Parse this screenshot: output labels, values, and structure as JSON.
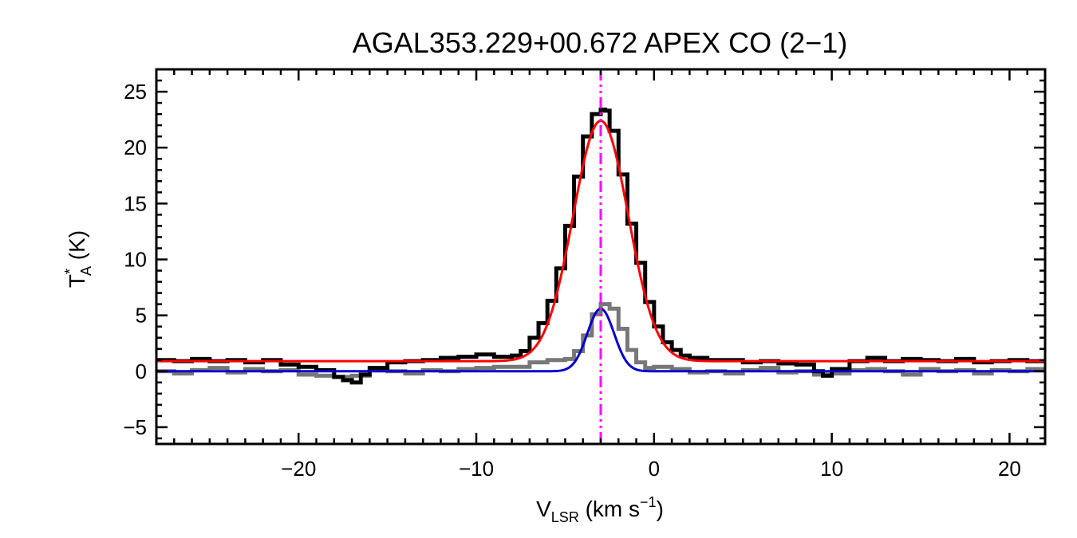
{
  "chart_data": {
    "type": "line",
    "title": "AGAL353.229+00.672  APEX CO (2−1)",
    "xlabel": {
      "main": "V",
      "sub": "LSR",
      "unit_pre": " (km s",
      "unit_sup": "−1",
      "unit_post": ")"
    },
    "ylabel": {
      "main": "T",
      "sup": "*",
      "sub": "A",
      "unit": " (K)"
    },
    "xlim": [
      -28,
      22
    ],
    "ylim": [
      -6.5,
      27
    ],
    "xticks": [
      -20,
      -10,
      0,
      10,
      20
    ],
    "xtick_labels": [
      "−20",
      "−10",
      "0",
      "10",
      "20"
    ],
    "yticks": [
      -5,
      0,
      5,
      10,
      15,
      20,
      25
    ],
    "ytick_labels": [
      "−5",
      "0",
      "5",
      "10",
      "15",
      "20",
      "25"
    ],
    "grid": false,
    "legend": "none",
    "series": [
      {
        "role": "spectrum",
        "color": "#000000",
        "x": [
          -28,
          -27,
          -26,
          -25,
          -24,
          -23,
          -22,
          -21,
          -20,
          -19,
          -18,
          -17.5,
          -17,
          -16.5,
          -16,
          -15,
          -14,
          -13,
          -12,
          -11,
          -10,
          -9,
          -8,
          -7.5,
          -7,
          -6.5,
          -6,
          -5.5,
          -5,
          -4.5,
          -4,
          -3.5,
          -3,
          -2.75,
          -2.5,
          -2,
          -1.5,
          -1,
          -0.5,
          0,
          0.5,
          1,
          1.5,
          2,
          3,
          4,
          5,
          6,
          7,
          8,
          9,
          9.5,
          10,
          11,
          12,
          13,
          14,
          15,
          16,
          17,
          18,
          19,
          20,
          21,
          22
        ],
        "values": [
          1.0,
          0.9,
          1.1,
          0.9,
          1.0,
          0.8,
          1.0,
          0.6,
          0.4,
          0.1,
          -0.5,
          -0.8,
          -1.0,
          -0.3,
          0.3,
          0.8,
          0.9,
          1.0,
          1.2,
          1.3,
          1.5,
          1.3,
          1.4,
          1.8,
          3.0,
          4.3,
          6.3,
          9.2,
          13.0,
          17.4,
          21.0,
          23.0,
          23.4,
          23.3,
          21.5,
          17.6,
          13.2,
          9.7,
          6.2,
          4.0,
          2.6,
          1.9,
          1.4,
          1.2,
          1.0,
          1.0,
          0.8,
          0.9,
          0.7,
          0.6,
          0.0,
          -0.4,
          0.2,
          0.9,
          1.2,
          0.9,
          1.1,
          1.0,
          0.9,
          1.1,
          0.8,
          0.9,
          1.0,
          0.9,
          0.9
        ]
      },
      {
        "role": "spectrum-2",
        "color": "#777777",
        "x": [
          -28,
          -27,
          -26,
          -25,
          -24,
          -23,
          -22,
          -21,
          -20,
          -19,
          -18,
          -17,
          -16,
          -15,
          -14,
          -13,
          -12,
          -11,
          -10,
          -9,
          -8,
          -7,
          -6,
          -5,
          -4.5,
          -4,
          -3.5,
          -3,
          -2.5,
          -2,
          -1.5,
          -1,
          -0.5,
          0,
          1,
          2,
          3,
          4,
          5,
          6,
          7,
          8,
          9,
          10,
          11,
          12,
          13,
          14,
          15,
          16,
          17,
          18,
          19,
          20,
          21,
          22
        ],
        "values": [
          0.0,
          -0.2,
          0.1,
          0.3,
          -0.1,
          0.2,
          0.0,
          0.1,
          -0.3,
          -0.4,
          -0.5,
          -0.4,
          0.2,
          0.0,
          -0.2,
          0.1,
          0.0,
          0.2,
          0.3,
          0.4,
          0.4,
          0.8,
          1.0,
          1.1,
          1.8,
          3.2,
          5.1,
          6.0,
          5.6,
          3.8,
          1.9,
          0.8,
          0.3,
          0.4,
          0.2,
          -0.1,
          0.0,
          -0.2,
          0.1,
          0.3,
          -0.1,
          0.0,
          -0.3,
          -0.2,
          0.1,
          0.2,
          0.0,
          -0.3,
          0.2,
          0.0,
          0.1,
          -0.2,
          0.1,
          0.0,
          0.2,
          0.1
        ]
      },
      {
        "role": "fit",
        "color": "#ff0000",
        "model": "gaussian",
        "amplitude": 21.5,
        "center": -3.0,
        "sigma": 1.55,
        "baseline": 0.9
      },
      {
        "role": "fit-2",
        "color": "#0000cc",
        "model": "gaussian",
        "amplitude": 5.6,
        "center": -3.0,
        "sigma": 0.75,
        "baseline": 0.0
      }
    ],
    "vline": {
      "x": -3.0,
      "color": "#ff00ff",
      "style": "dash-dot-dot"
    }
  }
}
